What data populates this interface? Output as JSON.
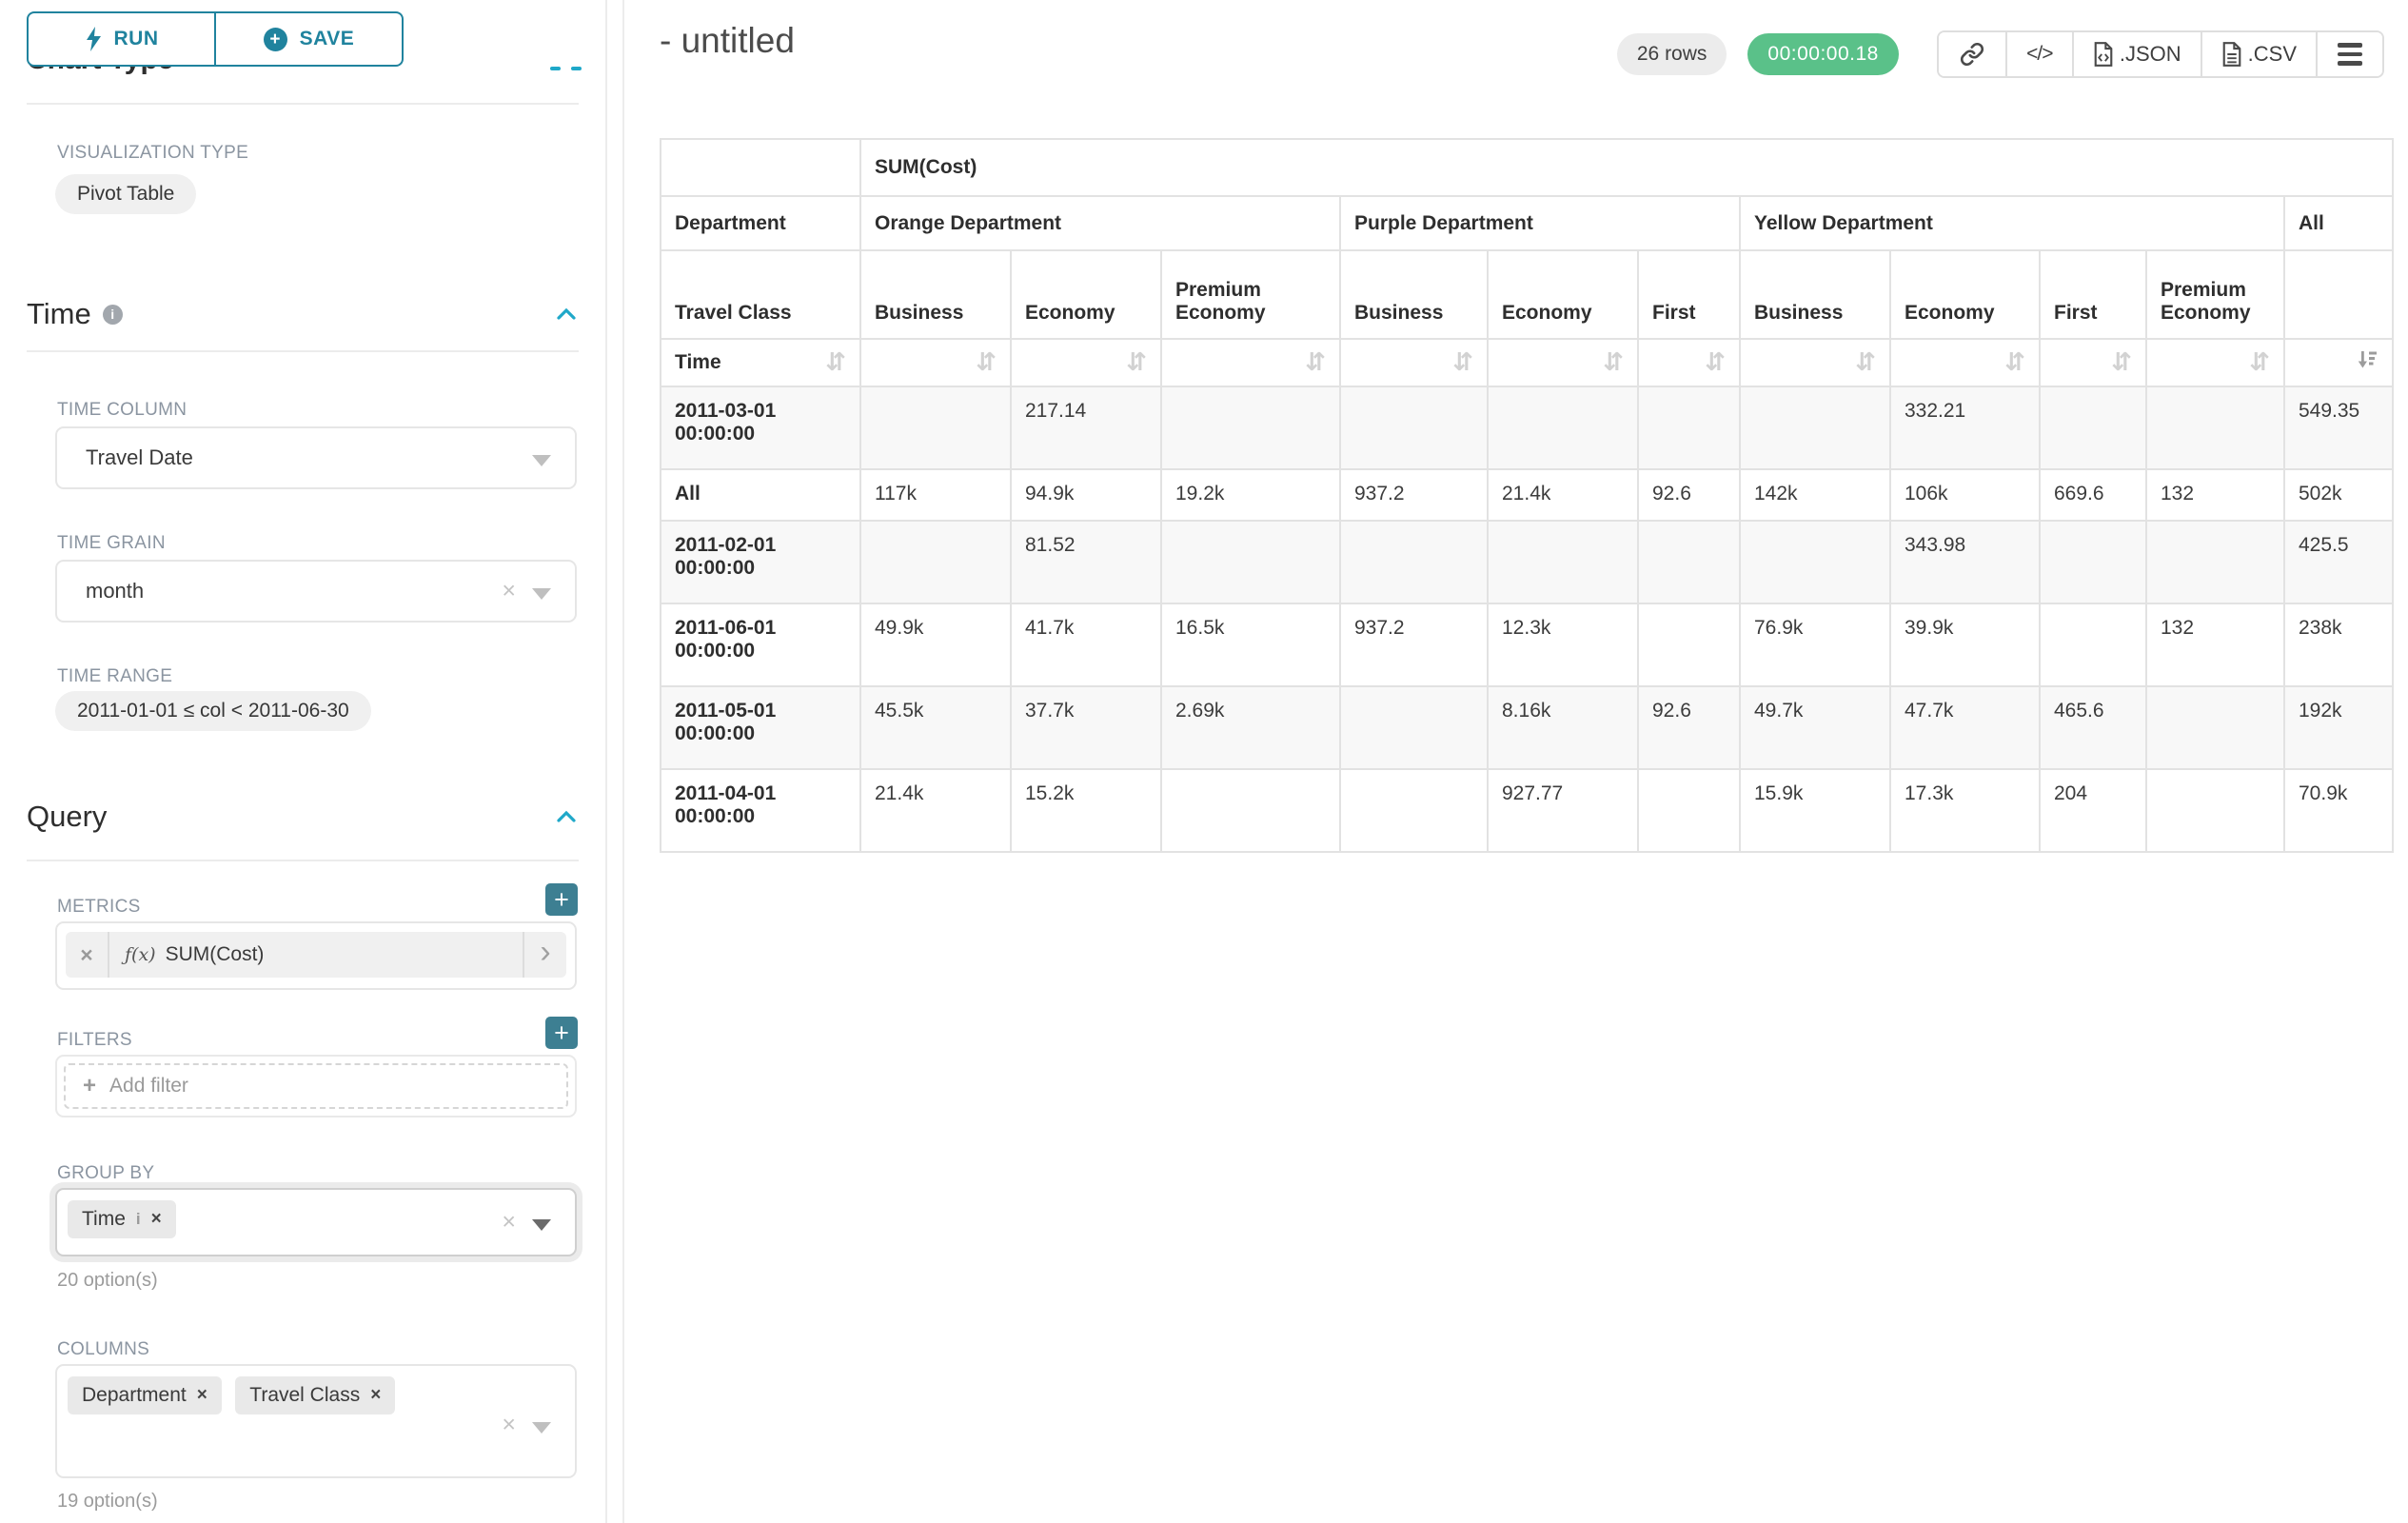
{
  "colors": {
    "accent_teal": "#20839e",
    "bright_blue": "#1fa8c9",
    "success_green": "#5ac189"
  },
  "sidebar": {
    "run_label": "RUN",
    "save_label": "SAVE",
    "chart_type_header": "Chart Type",
    "visualization_type_label": "VISUALIZATION TYPE",
    "visualization_type_value": "Pivot Table",
    "time_section_title": "Time",
    "time_column_label": "TIME COLUMN",
    "time_column_value": "Travel Date",
    "time_grain_label": "TIME GRAIN",
    "time_grain_value": "month",
    "time_range_label": "TIME RANGE",
    "time_range_value": "2011-01-01 ≤ col < 2011-06-30",
    "query_section_title": "Query",
    "metrics_label": "METRICS",
    "metric_prefix": "ƒ(x)",
    "metric_value": "SUM(Cost)",
    "filters_label": "FILTERS",
    "add_filter_placeholder": "Add filter",
    "group_by_label": "GROUP BY",
    "group_by_tags": [
      "Time"
    ],
    "group_by_options_hint": "20 option(s)",
    "columns_label": "COLUMNS",
    "columns_tags": [
      "Department",
      "Travel Class"
    ],
    "columns_options_hint": "19 option(s)"
  },
  "header": {
    "title": "- untitled",
    "rows_badge": "26 rows",
    "timer": "00:00:00.18",
    "toolbar": {
      "icons": [
        "link-icon",
        "code-icon",
        "json-file-icon",
        "csv-file-icon",
        "menu-icon"
      ],
      "json_label": ".JSON",
      "csv_label": ".CSV"
    }
  },
  "table": {
    "metric_header": "SUM(Cost)",
    "department_axis_label": "Department",
    "class_axis_label": "Travel Class",
    "row_axis_label": "Time",
    "column_groups": [
      {
        "name": "Orange Department",
        "columns": [
          "Business",
          "Economy",
          "Premium Economy"
        ]
      },
      {
        "name": "Purple Department",
        "columns": [
          "Business",
          "Economy",
          "First"
        ]
      },
      {
        "name": "Yellow Department",
        "columns": [
          "Business",
          "Economy",
          "First",
          "Premium Economy"
        ]
      },
      {
        "name": "All",
        "columns": [
          ""
        ]
      }
    ],
    "sort_state": {
      "sorted_column": "All",
      "direction": "desc"
    },
    "rows": [
      {
        "label": "2011-03-01 00:00:00",
        "values": [
          "",
          "217.14",
          "",
          "",
          "",
          "",
          "",
          "332.21",
          "",
          "",
          "549.35"
        ]
      },
      {
        "label": "All",
        "values": [
          "117k",
          "94.9k",
          "19.2k",
          "937.2",
          "21.4k",
          "92.6",
          "142k",
          "106k",
          "669.6",
          "132",
          "502k"
        ]
      },
      {
        "label": "2011-02-01 00:00:00",
        "values": [
          "",
          "81.52",
          "",
          "",
          "",
          "",
          "",
          "343.98",
          "",
          "",
          "425.5"
        ]
      },
      {
        "label": "2011-06-01 00:00:00",
        "values": [
          "49.9k",
          "41.7k",
          "16.5k",
          "937.2",
          "12.3k",
          "",
          "76.9k",
          "39.9k",
          "",
          "132",
          "238k"
        ]
      },
      {
        "label": "2011-05-01 00:00:00",
        "values": [
          "45.5k",
          "37.7k",
          "2.69k",
          "",
          "8.16k",
          "92.6",
          "49.7k",
          "47.7k",
          "465.6",
          "",
          "192k"
        ]
      },
      {
        "label": "2011-04-01 00:00:00",
        "values": [
          "21.4k",
          "15.2k",
          "",
          "",
          "927.77",
          "",
          "15.9k",
          "17.3k",
          "204",
          "",
          "70.9k"
        ]
      }
    ]
  }
}
